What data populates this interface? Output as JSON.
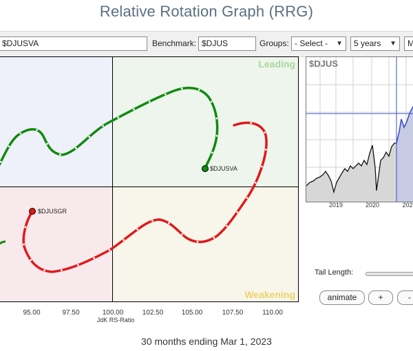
{
  "page": {
    "title": "Relative Rotation Graph (RRG)"
  },
  "toolbar": {
    "symbols_value": "$DJUSVA",
    "benchmark_label": "Benchmark:",
    "benchmark_value": "$DJUS",
    "groups_label": "Groups:",
    "groups_value": "- Select -",
    "period_value": "5 years",
    "frequency_value": "M"
  },
  "rrg": {
    "quadrants": {
      "leading": "Leading",
      "weakening": "Weakening"
    },
    "x_ticks": [
      "95.00",
      "97.50",
      "100.00",
      "102.50",
      "105.00",
      "107.50",
      "110.00"
    ],
    "x_axis_title": "JdK RS-Ratio",
    "colors": {
      "green": "#0f8a0f",
      "red": "#e0191b"
    },
    "labels": {
      "djusva": "$DJUSVA",
      "djusgr": "$DJUSGR"
    }
  },
  "mini_chart": {
    "title": "$DJUS",
    "years": [
      "2019",
      "2020",
      "202"
    ],
    "colors": {
      "history": "#111111",
      "tail": "#3a4fc7",
      "marker": "#3a4fc7"
    }
  },
  "controls": {
    "tail_length_label": "Tail Length:",
    "animate_label": "animate",
    "plus_label": "+",
    "minus_label": "-"
  },
  "footer": {
    "caption": "30 months ending Mar 1, 2023"
  }
}
